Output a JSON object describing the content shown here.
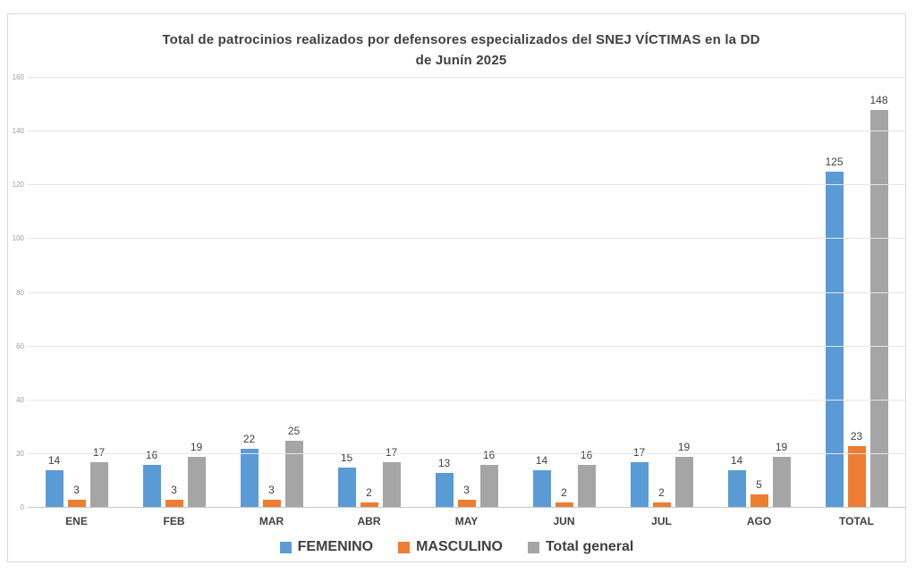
{
  "chart_data": {
    "type": "bar",
    "title": "Total de patrocinios realizados por defensores especializados del SNEJ VÍCTIMAS  en la DD de Junín 2025",
    "title_lines": [
      "Total de patrocinios realizados por defensores especializados del SNEJ VÍCTIMAS  en la DD",
      "de Junín 2025"
    ],
    "categories": [
      "ENE",
      "FEB",
      "MAR",
      "ABR",
      "MAY",
      "JUN",
      "JUL",
      "AGO",
      "TOTAL"
    ],
    "series": [
      {
        "name": "FEMENINO",
        "color": "#5B9BD5",
        "values": [
          14,
          16,
          22,
          15,
          13,
          14,
          17,
          14,
          125
        ]
      },
      {
        "name": "MASCULINO",
        "color": "#ED7D31",
        "values": [
          3,
          3,
          3,
          2,
          3,
          2,
          2,
          5,
          23
        ]
      },
      {
        "name": "Total general",
        "color": "#A5A5A5",
        "values": [
          17,
          19,
          25,
          17,
          16,
          16,
          19,
          19,
          148
        ]
      }
    ],
    "ylim": [
      0,
      160
    ],
    "ytick_step": 20,
    "ytick_labels": [
      "0",
      "20",
      "40",
      "60",
      "80",
      "100",
      "120",
      "140",
      "160"
    ],
    "grid": "horizontal",
    "legend_position": "bottom",
    "data_labels": true,
    "xlabel": "",
    "ylabel": ""
  },
  "colors": {
    "grid": "#E6E6E6",
    "axis_line": "#C6C6C6",
    "text": "#404040",
    "ytick_text": "#9B9B9B",
    "frame_border": "#D9D9D9",
    "background": "#FFFFFF"
  }
}
